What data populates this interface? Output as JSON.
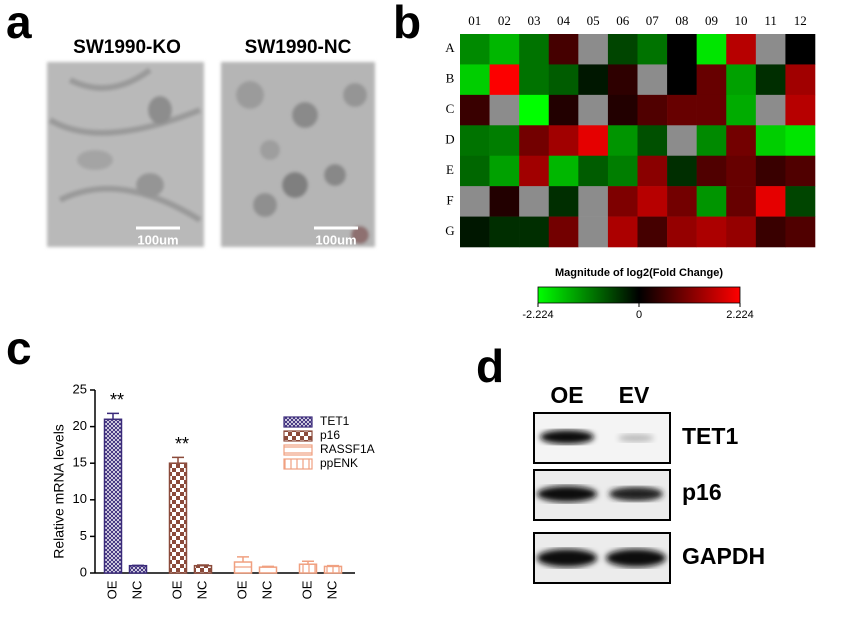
{
  "panels": {
    "a": {
      "label": "a",
      "images": [
        {
          "title": "SW1990-KO",
          "scale_bar": "100um"
        },
        {
          "title": "SW1990-NC",
          "scale_bar": "100um"
        }
      ]
    },
    "b": {
      "label": "b"
    },
    "c": {
      "label": "c"
    },
    "d": {
      "label": "d",
      "lanes": [
        "OE",
        "EV"
      ],
      "rows": [
        "TET1",
        "p16",
        "GAPDH"
      ]
    }
  },
  "chart_data": [
    {
      "type": "heatmap",
      "title": "Magnitude of log2(Fold Change)",
      "x": [
        "01",
        "02",
        "03",
        "04",
        "05",
        "06",
        "07",
        "08",
        "09",
        "10",
        "11",
        "12"
      ],
      "y": [
        "A",
        "B",
        "C",
        "D",
        "E",
        "F",
        "G"
      ],
      "values": [
        [
          -1.2,
          -1.6,
          -1.0,
          0.6,
          null,
          -0.6,
          -1.0,
          0,
          -2.0,
          1.6,
          null,
          0
        ],
        [
          -1.8,
          2.2,
          -1.0,
          -0.8,
          -0.2,
          0.4,
          null,
          0,
          0.9,
          -1.4,
          -0.4,
          1.4
        ],
        [
          0.5,
          null,
          -2.224,
          0.3,
          null,
          0.3,
          0.7,
          0.9,
          0.9,
          -1.5,
          null,
          1.6
        ],
        [
          -1.0,
          -1.1,
          1.0,
          1.4,
          2.0,
          -1.3,
          -0.7,
          null,
          -1.2,
          1.0,
          -1.8,
          -2.0
        ],
        [
          -0.9,
          -1.4,
          1.4,
          -1.6,
          -0.8,
          -1.1,
          1.2,
          -0.4,
          0.7,
          0.9,
          0.5,
          0.7
        ],
        [
          null,
          0.3,
          null,
          -0.4,
          null,
          1.1,
          1.6,
          1.0,
          -1.3,
          0.9,
          2.0,
          -0.6
        ],
        [
          -0.2,
          -0.4,
          -0.4,
          1.0,
          null,
          1.5,
          0.6,
          1.3,
          1.5,
          1.3,
          0.5,
          0.7
        ]
      ],
      "zlim": [
        -2.224,
        2.224
      ],
      "zticks": [
        -2.224,
        0,
        2.224
      ],
      "colors": [
        "#00ff00",
        "#000000",
        "#ff0000"
      ],
      "missing_color": "#8c8c8c"
    },
    {
      "type": "bar",
      "ylabel": "Relative mRNA levels",
      "categories": [
        "OE",
        "NC"
      ],
      "ylim": [
        0,
        25
      ],
      "yticks": [
        0,
        5,
        10,
        15,
        20,
        25
      ],
      "series": [
        {
          "name": "TET1",
          "color": "#3a2a7a",
          "pattern": "crosshatch",
          "values": [
            21,
            1
          ],
          "errors": [
            0.8,
            0.05
          ],
          "annotations": [
            "**",
            null
          ]
        },
        {
          "name": "p16",
          "color": "#8b4a3a",
          "pattern": "checker",
          "values": [
            15,
            1
          ],
          "errors": [
            0.8,
            0.1
          ],
          "annotations": [
            "**",
            null
          ]
        },
        {
          "name": "RASSF1A",
          "color": "#f0a080",
          "pattern": "hlines",
          "values": [
            1.5,
            0.8
          ],
          "errors": [
            0.7,
            0.1
          ],
          "annotations": [
            null,
            null
          ]
        },
        {
          "name": "ppENK",
          "color": "#f0a080",
          "pattern": "vlines",
          "values": [
            1.2,
            0.9
          ],
          "errors": [
            0.4,
            0.1
          ],
          "annotations": [
            null,
            null
          ]
        }
      ]
    }
  ]
}
